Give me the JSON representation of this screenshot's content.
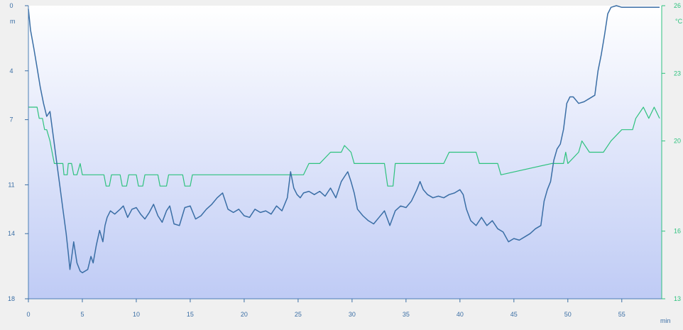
{
  "chart_data": {
    "type": "line",
    "x_unit": "min",
    "xlim": [
      0,
      58.7
    ],
    "x_ticks": [
      0,
      5,
      10,
      15,
      20,
      25,
      30,
      35,
      40,
      45,
      50,
      55
    ],
    "y_left": {
      "unit": "m",
      "range": [
        0,
        18
      ],
      "reversed": true,
      "ticks": [
        0,
        4,
        7,
        11,
        14,
        18
      ],
      "color": "#3a6ea5"
    },
    "y_right": {
      "unit": "°C",
      "range": [
        13,
        26
      ],
      "ticks": [
        13,
        16,
        20,
        23,
        26
      ],
      "color": "#2ec27e"
    },
    "grid": false,
    "background": {
      "top": "#ffffff",
      "bottom": "#bfcbf5"
    },
    "series": [
      {
        "key": "depth",
        "axis": "left",
        "color": "#3a6ea5",
        "x": [
          0,
          0.2,
          0.5,
          0.8,
          1.1,
          1.4,
          1.7,
          2.0,
          2.3,
          2.6,
          2.9,
          3.2,
          3.5,
          3.7,
          3.85,
          4.0,
          4.2,
          4.5,
          4.8,
          5.0,
          5.5,
          5.8,
          6.0,
          6.3,
          6.6,
          6.9,
          7.1,
          7.3,
          7.6,
          8.0,
          8.5,
          8.8,
          9.2,
          9.6,
          10.0,
          10.4,
          10.8,
          11.2,
          11.6,
          12.0,
          12.4,
          12.8,
          13.1,
          13.5,
          14.0,
          14.5,
          15.0,
          15.5,
          16.0,
          16.5,
          17.0,
          17.5,
          18.0,
          18.5,
          19.0,
          19.5,
          20.0,
          20.5,
          21.0,
          21.5,
          22.0,
          22.5,
          23.0,
          23.5,
          24.0,
          24.3,
          24.6,
          24.9,
          25.2,
          25.5,
          26.0,
          26.5,
          27.0,
          27.5,
          28.0,
          28.5,
          29.0,
          29.3,
          29.6,
          29.9,
          30.2,
          30.5,
          31.0,
          31.5,
          32.0,
          32.5,
          33.0,
          33.5,
          34.0,
          34.5,
          35.0,
          35.5,
          36.0,
          36.3,
          36.6,
          37.0,
          37.5,
          38.0,
          38.5,
          39.0,
          39.5,
          40.0,
          40.3,
          40.6,
          41.0,
          41.5,
          42.0,
          42.5,
          43.0,
          43.5,
          44.0,
          44.5,
          45.0,
          45.5,
          46.0,
          46.5,
          47.0,
          47.5,
          47.8,
          48.1,
          48.4,
          48.7,
          49.0,
          49.3,
          49.6,
          49.9,
          50.2,
          50.5,
          51.0,
          51.5,
          52.0,
          52.5,
          52.8,
          53.1,
          53.4,
          53.7,
          54.0,
          54.5,
          55.0,
          55.5,
          56.0,
          56.5,
          57.0,
          57.5,
          58.0,
          58.5
        ],
        "y": [
          0.2,
          1.5,
          2.6,
          3.8,
          5.0,
          6.0,
          6.8,
          6.5,
          8.0,
          9.5,
          11.0,
          12.5,
          14.0,
          15.2,
          16.2,
          15.5,
          14.5,
          15.8,
          16.3,
          16.4,
          16.2,
          15.4,
          15.8,
          14.7,
          13.8,
          14.5,
          13.5,
          13.0,
          12.6,
          12.8,
          12.5,
          12.3,
          13.0,
          12.5,
          12.4,
          12.8,
          13.1,
          12.7,
          12.2,
          12.9,
          13.3,
          12.6,
          12.3,
          13.4,
          13.5,
          12.4,
          12.3,
          13.1,
          12.9,
          12.5,
          12.2,
          11.8,
          11.5,
          12.5,
          12.7,
          12.5,
          12.9,
          13.0,
          12.5,
          12.7,
          12.6,
          12.8,
          12.3,
          12.6,
          11.8,
          10.2,
          11.2,
          11.6,
          11.8,
          11.5,
          11.4,
          11.6,
          11.4,
          11.7,
          11.2,
          11.8,
          10.8,
          10.5,
          10.2,
          10.8,
          11.5,
          12.5,
          12.9,
          13.2,
          13.4,
          13.0,
          12.6,
          13.5,
          12.6,
          12.3,
          12.4,
          12.0,
          11.3,
          10.8,
          11.3,
          11.6,
          11.8,
          11.7,
          11.8,
          11.6,
          11.5,
          11.3,
          11.6,
          12.5,
          13.2,
          13.5,
          13.0,
          13.5,
          13.2,
          13.7,
          13.9,
          14.5,
          14.3,
          14.4,
          14.2,
          14.0,
          13.7,
          13.5,
          12.0,
          11.3,
          10.8,
          9.5,
          8.8,
          8.5,
          7.6,
          6.0,
          5.6,
          5.6,
          6.0,
          5.9,
          5.7,
          5.5,
          4.0,
          3.0,
          1.8,
          0.5,
          0.1,
          0.0,
          0.1,
          0.1,
          0.1,
          0.1,
          0.1,
          0.1,
          0.1,
          0.1
        ]
      },
      {
        "key": "temperature",
        "axis": "right",
        "color": "#2ec27e",
        "x": [
          0,
          0.8,
          1.0,
          1.3,
          1.5,
          1.7,
          2.0,
          2.2,
          2.4,
          3.2,
          3.3,
          3.6,
          3.7,
          4.0,
          4.2,
          4.5,
          4.8,
          5.0,
          7.0,
          7.2,
          7.5,
          7.7,
          8.5,
          8.7,
          9.1,
          9.3,
          10.0,
          10.2,
          10.6,
          10.8,
          12.0,
          12.2,
          12.8,
          13.0,
          14.3,
          14.5,
          15.0,
          15.2,
          15.9,
          16.1,
          17.0,
          18.3,
          25.5,
          26.0,
          27.0,
          28.0,
          29.0,
          29.3,
          29.9,
          30.2,
          31.0,
          31.5,
          33.0,
          33.3,
          33.8,
          34.0,
          36.5,
          38.5,
          39.0,
          41.5,
          41.8,
          42.0,
          43.5,
          43.8,
          48.5,
          49.6,
          49.8,
          50.0,
          51.0,
          51.3,
          52.0,
          53.3,
          54.0,
          55.0,
          55.2,
          56.0,
          56.3,
          57.0,
          57.5,
          58.0,
          58.5
        ],
        "y": [
          21.5,
          21.5,
          21.0,
          21.0,
          20.5,
          20.5,
          20.0,
          19.5,
          19.0,
          19.0,
          18.5,
          18.5,
          19.0,
          19.0,
          18.5,
          18.5,
          19.0,
          18.5,
          18.5,
          18.0,
          18.0,
          18.5,
          18.5,
          18.0,
          18.0,
          18.5,
          18.5,
          18.0,
          18.0,
          18.5,
          18.5,
          18.0,
          18.0,
          18.5,
          18.5,
          18.0,
          18.0,
          18.5,
          18.5,
          18.5,
          18.5,
          18.5,
          18.5,
          19.0,
          19.0,
          19.5,
          19.5,
          19.8,
          19.5,
          19.0,
          19.0,
          19.0,
          19.0,
          18.0,
          18.0,
          19.0,
          19.0,
          19.0,
          19.5,
          19.5,
          19.0,
          19.0,
          19.0,
          18.5,
          19.0,
          19.0,
          19.5,
          19.0,
          19.5,
          20.0,
          19.5,
          19.5,
          20.0,
          20.5,
          20.5,
          20.5,
          21.0,
          21.5,
          21.0,
          21.5,
          21.0
        ]
      }
    ]
  }
}
